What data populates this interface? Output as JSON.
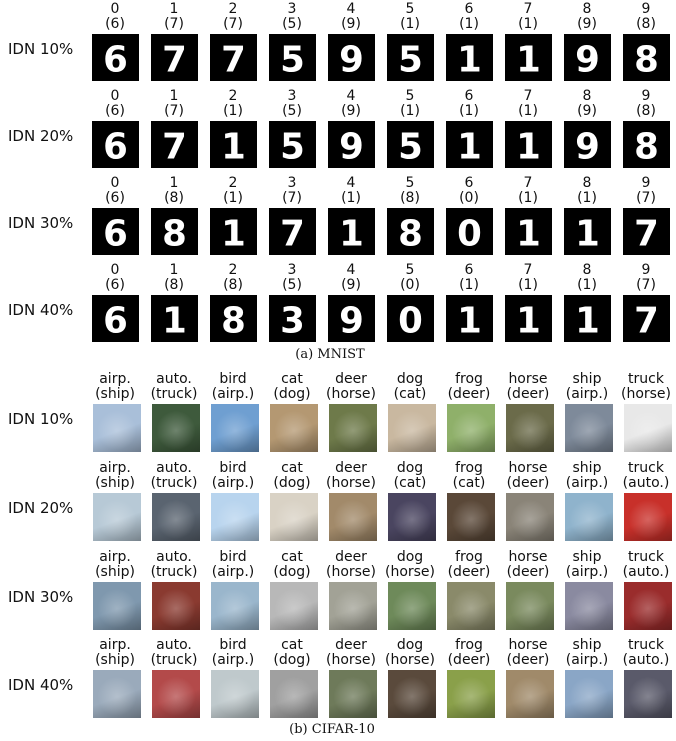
{
  "mnist": {
    "caption": "(a) MNIST",
    "rows": [
      {
        "label": "IDN 10%",
        "top": [
          "0",
          "1",
          "2",
          "3",
          "4",
          "5",
          "6",
          "7",
          "8",
          "9"
        ],
        "bottom": [
          "(6)",
          "(7)",
          "(7)",
          "(5)",
          "(9)",
          "(1)",
          "(1)",
          "(1)",
          "(9)",
          "(8)"
        ],
        "glyphs": [
          "6",
          "7",
          "7",
          "5",
          "9",
          "5",
          "1",
          "1",
          "9",
          "8"
        ]
      },
      {
        "label": "IDN 20%",
        "top": [
          "0",
          "1",
          "2",
          "3",
          "4",
          "5",
          "6",
          "7",
          "8",
          "9"
        ],
        "bottom": [
          "(6)",
          "(7)",
          "(1)",
          "(5)",
          "(9)",
          "(1)",
          "(1)",
          "(1)",
          "(9)",
          "(8)"
        ],
        "glyphs": [
          "6",
          "7",
          "1",
          "5",
          "9",
          "5",
          "1",
          "1",
          "9",
          "8"
        ]
      },
      {
        "label": "IDN 30%",
        "top": [
          "0",
          "1",
          "2",
          "3",
          "4",
          "5",
          "6",
          "7",
          "8",
          "9"
        ],
        "bottom": [
          "(6)",
          "(8)",
          "(1)",
          "(7)",
          "(1)",
          "(8)",
          "(0)",
          "(1)",
          "(1)",
          "(7)"
        ],
        "glyphs": [
          "6",
          "8",
          "1",
          "7",
          "1",
          "8",
          "0",
          "1",
          "1",
          "7"
        ]
      },
      {
        "label": "IDN 40%",
        "top": [
          "0",
          "1",
          "2",
          "3",
          "4",
          "5",
          "6",
          "7",
          "8",
          "9"
        ],
        "bottom": [
          "(6)",
          "(8)",
          "(8)",
          "(5)",
          "(9)",
          "(0)",
          "(1)",
          "(1)",
          "(1)",
          "(7)"
        ],
        "glyphs": [
          "6",
          "1",
          "8",
          "3",
          "9",
          "0",
          "1",
          "1",
          "1",
          "7"
        ]
      }
    ]
  },
  "cifar": {
    "caption": "(b) CIFAR-10",
    "rows": [
      {
        "label": "IDN 10%",
        "top": [
          "airp.",
          "auto.",
          "bird",
          "cat",
          "deer",
          "dog",
          "frog",
          "horse",
          "ship",
          "truck"
        ],
        "bottom": [
          "(ship)",
          "(truck)",
          "(airp.)",
          "(dog)",
          "(horse)",
          "(cat)",
          "(deer)",
          "(deer)",
          "(airp.)",
          "(horse)"
        ],
        "colors": [
          "#a9bfd9",
          "#3e5a3c",
          "#6f9fd1",
          "#b49872",
          "#6e7a4a",
          "#c9b8a0",
          "#8fb06a",
          "#6b6b4a",
          "#7e8a9a",
          "#e8e8e8"
        ]
      },
      {
        "label": "IDN 20%",
        "top": [
          "airp.",
          "auto.",
          "bird",
          "cat",
          "deer",
          "dog",
          "frog",
          "horse",
          "ship",
          "truck"
        ],
        "bottom": [
          "(ship)",
          "(truck)",
          "(airp.)",
          "(dog)",
          "(horse)",
          "(cat)",
          "(cat)",
          "(deer)",
          "(airp.)",
          "(auto.)"
        ],
        "colors": [
          "#b7c9d6",
          "#5a6470",
          "#b8d4ee",
          "#d9d2c5",
          "#a28a6a",
          "#4a4560",
          "#5a4838",
          "#8a8478",
          "#8fb3cc",
          "#c8302a"
        ]
      },
      {
        "label": "IDN 30%",
        "top": [
          "airp.",
          "auto.",
          "bird",
          "cat",
          "deer",
          "dog",
          "frog",
          "horse",
          "ship",
          "truck"
        ],
        "bottom": [
          "(ship)",
          "(truck)",
          "(airp.)",
          "(dog)",
          "(horse)",
          "(horse)",
          "(deer)",
          "(deer)",
          "(airp.)",
          "(auto.)"
        ],
        "colors": [
          "#7f98ae",
          "#8a3a30",
          "#9ab6cc",
          "#b8b8b8",
          "#a2a296",
          "#6e8a5a",
          "#8a8a6a",
          "#7a8a5e",
          "#8a8aa0",
          "#9a2c2c"
        ]
      },
      {
        "label": "IDN 40%",
        "top": [
          "airp.",
          "auto.",
          "bird",
          "cat",
          "deer",
          "dog",
          "frog",
          "horse",
          "ship",
          "truck"
        ],
        "bottom": [
          "(ship)",
          "(truck)",
          "(airp.)",
          "(dog)",
          "(horse)",
          "(horse)",
          "(deer)",
          "(deer)",
          "(airp.)",
          "(auto.)"
        ],
        "colors": [
          "#9aaabb",
          "#b34a4a",
          "#bfc9cc",
          "#a0a0a0",
          "#6e7a5a",
          "#5a4a3c",
          "#8aa04a",
          "#a08a6a",
          "#8aa6c6",
          "#5a5a6a"
        ]
      }
    ]
  }
}
